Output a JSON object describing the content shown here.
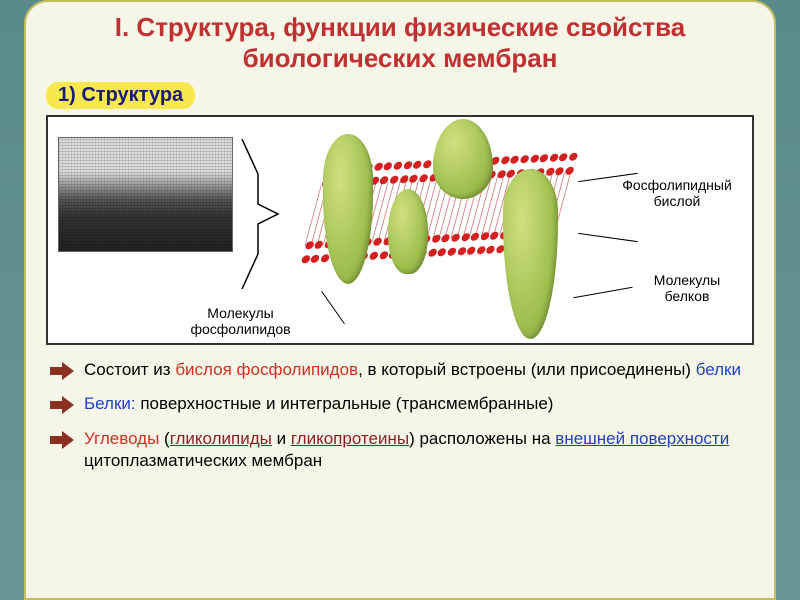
{
  "title": "I. Структура, функции физические свойства биологических мембран",
  "subtitle": "1) Структура",
  "labels": {
    "bilayer": "Фосфолипидный бислой",
    "protein_molecules": "Молекулы белков",
    "phospholipid_molecules": "Молекулы фосфолипидов"
  },
  "bullets": {
    "b1_a": "Состоит из ",
    "b1_b": "бислоя фосфолипидов",
    "b1_c": ",  в который встроены (или присоединены) ",
    "b1_d": "белки",
    "b2_a": "Белки:",
    "b2_b": " поверхностные и интегральные (трансмембранные)",
    "b3_a": "Углеводы",
    "b3_b": " (",
    "b3_c": "гликолипиды",
    "b3_d": " и ",
    "b3_e": "гликопротеины",
    "b3_f": ") расположены на ",
    "b3_g": "внешней поверхности",
    "b3_h": " цитоплазматических мембран"
  },
  "colors": {
    "background_gradient_top": "#5a8a8a",
    "background_gradient_bottom": "#6a9595",
    "slide_bg": "#f5f5e8",
    "slide_border": "#c0c060",
    "title_color": "#c03030",
    "subtitle_bg": "#f8e850",
    "subtitle_color": "#1a1a7a",
    "lipid_head": "#d42020",
    "protein_fill": "#a0c050",
    "arrow_color": "#8b3020",
    "text_red": "#d03020",
    "text_blue": "#2040c0",
    "text_darkred": "#8b2020"
  },
  "diagram": {
    "type": "infographic",
    "components": [
      "electron_micrograph",
      "bracket",
      "phospholipid_bilayer_3d",
      "integral_proteins"
    ],
    "protein_count": 4,
    "lipid_heads_per_row": 26
  }
}
